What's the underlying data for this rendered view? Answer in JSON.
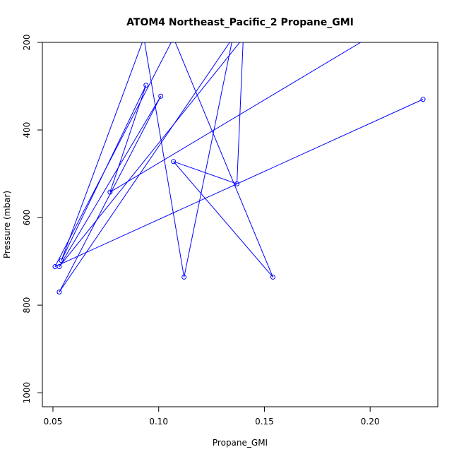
{
  "chart_data": {
    "type": "line",
    "title": "ATOM4 Northeast_Pacific_2 Propane_GMI",
    "xlabel": "Propane_GMI",
    "ylabel": "Pressure (mbar)",
    "xlim": [
      0.045,
      0.232
    ],
    "ylim": [
      1032,
      200
    ],
    "y_reversed": true,
    "x_ticks": [
      "0.05",
      "0.10",
      "0.15",
      "0.20"
    ],
    "x_tick_values": [
      0.05,
      0.1,
      0.15,
      0.2
    ],
    "y_ticks": [
      "200",
      "400",
      "600",
      "800",
      "1000"
    ],
    "y_tick_values": [
      200,
      400,
      600,
      800,
      1000
    ],
    "series_color": "#0000ff",
    "grid": false,
    "legend": "none",
    "point_order": [
      {
        "x": 0.225,
        "y": 330
      },
      {
        "x": 0.051,
        "y": 712
      },
      {
        "x": 0.107,
        "y": 190
      },
      {
        "x": 0.154,
        "y": 736
      },
      {
        "x": 0.107,
        "y": 472
      },
      {
        "x": 0.137,
        "y": 523
      },
      {
        "x": 0.14,
        "y": 190
      },
      {
        "x": 0.053,
        "y": 712
      },
      {
        "x": 0.101,
        "y": 323
      },
      {
        "x": 0.053,
        "y": 770
      },
      {
        "x": 0.135,
        "y": 190
      },
      {
        "x": 0.112,
        "y": 736
      },
      {
        "x": 0.093,
        "y": 190
      },
      {
        "x": 0.054,
        "y": 698
      },
      {
        "x": 0.094,
        "y": 298
      },
      {
        "x": 0.077,
        "y": 542
      },
      {
        "x": 0.199,
        "y": 190
      }
    ]
  }
}
